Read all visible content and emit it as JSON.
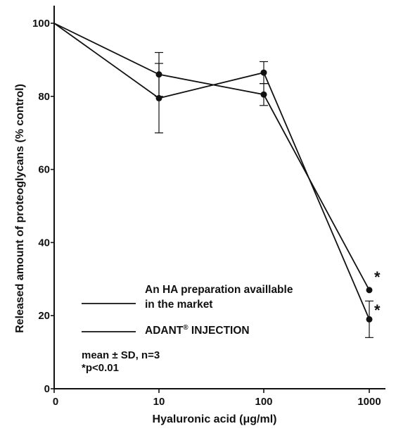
{
  "chart_data": {
    "type": "line",
    "title": "",
    "xlabel": "Hyaluronic acid (μg/ml)",
    "ylabel": "Released amount of proteoglycans (% control)",
    "x_scale": "log-like, with 0 at origin",
    "categories": [
      "0",
      "10",
      "100",
      "1000"
    ],
    "ylim": [
      0,
      100
    ],
    "yticks": [
      "0",
      "20",
      "40",
      "60",
      "80",
      "100"
    ],
    "grid": false,
    "series": [
      {
        "name": "An HA preparation availlable in the market",
        "values": [
          100,
          86,
          80.5,
          27
        ],
        "error": [
          0,
          6,
          3,
          0
        ]
      },
      {
        "name": "ADANT® INJECTION",
        "values": [
          100,
          79.5,
          86.5,
          19
        ],
        "error": [
          0,
          9.5,
          3,
          5
        ]
      }
    ],
    "legend": {
      "position": "lower-middle",
      "entries": [
        {
          "line1": "An HA preparation availlable",
          "line2": "in the market"
        },
        {
          "main": "ADANT",
          "sup": "®",
          "rest": " INJECTION"
        }
      ]
    },
    "annotations": {
      "stars": [
        "*",
        "*"
      ],
      "note_line1": "mean ± SD, n=3",
      "note_line2": "*p<0.01"
    },
    "colors": {
      "line": "#111111"
    }
  }
}
